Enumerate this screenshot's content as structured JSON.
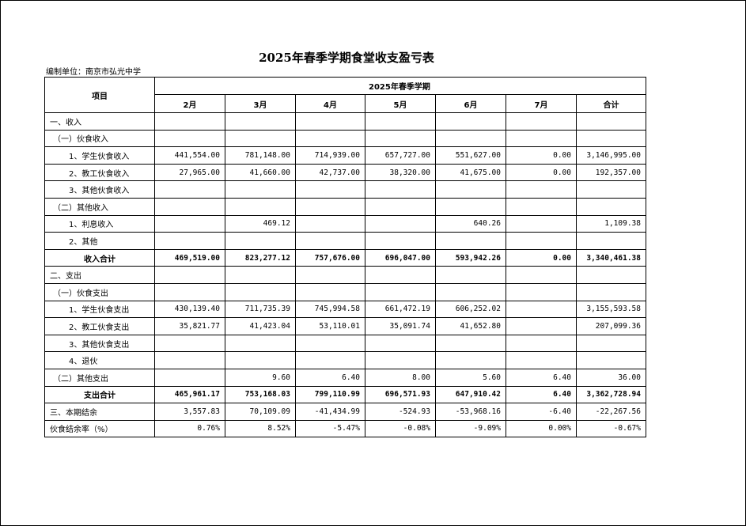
{
  "title": "2025年春季学期食堂收支盈亏表",
  "unit": "编制单位：南京市弘光中学",
  "header": {
    "item": "项目",
    "semester": "2025年春季学期",
    "columns": [
      "2月",
      "3月",
      "4月",
      "5月",
      "6月",
      "7月",
      "合计"
    ]
  },
  "rows": [
    {
      "label": "一、收入",
      "indent": 0,
      "values": [
        "",
        "",
        "",
        "",
        "",
        "",
        ""
      ]
    },
    {
      "label": "（一）伙食收入",
      "indent": 1,
      "values": [
        "",
        "",
        "",
        "",
        "",
        "",
        ""
      ]
    },
    {
      "label": "1、学生伙食收入",
      "indent": 2,
      "values": [
        "441,554.00",
        "781,148.00",
        "714,939.00",
        "657,727.00",
        "551,627.00",
        "0.00",
        "3,146,995.00"
      ]
    },
    {
      "label": "2、教工伙食收入",
      "indent": 2,
      "values": [
        "27,965.00",
        "41,660.00",
        "42,737.00",
        "38,320.00",
        "41,675.00",
        "0.00",
        "192,357.00"
      ]
    },
    {
      "label": "3、其他伙食收入",
      "indent": 2,
      "values": [
        "",
        "",
        "",
        "",
        "",
        "",
        ""
      ]
    },
    {
      "label": "（二）其他收入",
      "indent": 1,
      "values": [
        "",
        "",
        "",
        "",
        "",
        "",
        ""
      ]
    },
    {
      "label": "1、利息收入",
      "indent": 2,
      "values": [
        "",
        "469.12",
        "",
        "",
        "640.26",
        "",
        "1,109.38"
      ]
    },
    {
      "label": "2、其他",
      "indent": 2,
      "values": [
        "",
        "",
        "",
        "",
        "",
        "",
        ""
      ]
    },
    {
      "label": "收入合计",
      "indent": "total",
      "values": [
        "469,519.00",
        "823,277.12",
        "757,676.00",
        "696,047.00",
        "593,942.26",
        "0.00",
        "3,340,461.38"
      ]
    },
    {
      "label": "二、支出",
      "indent": 0,
      "values": [
        "",
        "",
        "",
        "",
        "",
        "",
        ""
      ]
    },
    {
      "label": "（一）伙食支出",
      "indent": 1,
      "values": [
        "",
        "",
        "",
        "",
        "",
        "",
        ""
      ]
    },
    {
      "label": "1、学生伙食支出",
      "indent": 2,
      "values": [
        "430,139.40",
        "711,735.39",
        "745,994.58",
        "661,472.19",
        "606,252.02",
        "",
        "3,155,593.58"
      ]
    },
    {
      "label": "2、教工伙食支出",
      "indent": 2,
      "values": [
        "35,821.77",
        "41,423.04",
        "53,110.01",
        "35,091.74",
        "41,652.80",
        "",
        "207,099.36"
      ]
    },
    {
      "label": "3、其他伙食支出",
      "indent": 2,
      "values": [
        "",
        "",
        "",
        "",
        "",
        "",
        ""
      ]
    },
    {
      "label": "4、退伙",
      "indent": 2,
      "values": [
        "",
        "",
        "",
        "",
        "",
        "",
        ""
      ]
    },
    {
      "label": "（二）其他支出",
      "indent": 1,
      "values": [
        "",
        "9.60",
        "6.40",
        "8.00",
        "5.60",
        "6.40",
        "36.00"
      ]
    },
    {
      "label": "支出合计",
      "indent": "total",
      "values": [
        "465,961.17",
        "753,168.03",
        "799,110.99",
        "696,571.93",
        "647,910.42",
        "6.40",
        "3,362,728.94"
      ]
    },
    {
      "label": "三、本期结余",
      "indent": 0,
      "values": [
        "3,557.83",
        "70,109.09",
        "-41,434.99",
        "-524.93",
        "-53,968.16",
        "-6.40",
        "-22,267.56"
      ]
    },
    {
      "label": "伙食结余率（%）",
      "indent": 0,
      "values": [
        "0.76%",
        "8.52%",
        "-5.47%",
        "-0.08%",
        "-9.09%",
        "0.00%",
        "-0.67%"
      ]
    }
  ]
}
